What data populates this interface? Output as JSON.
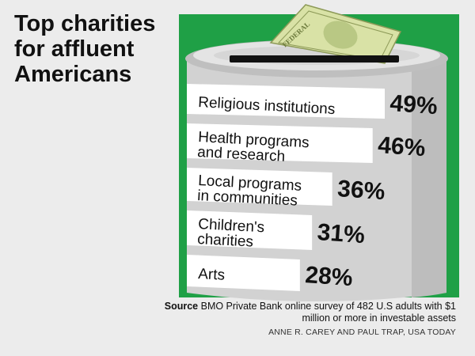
{
  "title": "Top charities for affluent Americans",
  "chart_data": {
    "type": "bar",
    "categories": [
      "Religious institutions",
      "Health programs and research",
      "Local programs in communities",
      "Children's charities",
      "Arts"
    ],
    "values": [
      49,
      46,
      36,
      31,
      28
    ],
    "value_labels": [
      "49%",
      "46%",
      "36%",
      "31%",
      "28%"
    ],
    "unit": "%"
  },
  "source": {
    "label": "Source",
    "text": "BMO Private Bank online survey of 482 U.S adults with $1 million or more in investable assets"
  },
  "credit": "ANNE R. CAREY AND PAUL TRAP, USA TODAY",
  "bill_text": "FEDERAL",
  "colors": {
    "background": "#ececec",
    "panel": "#1fa046",
    "can": "#d2d2d2",
    "can_dark": "#a9a9a9",
    "bill": "#d9e2a6",
    "band": "#ffffff",
    "text": "#111111"
  }
}
